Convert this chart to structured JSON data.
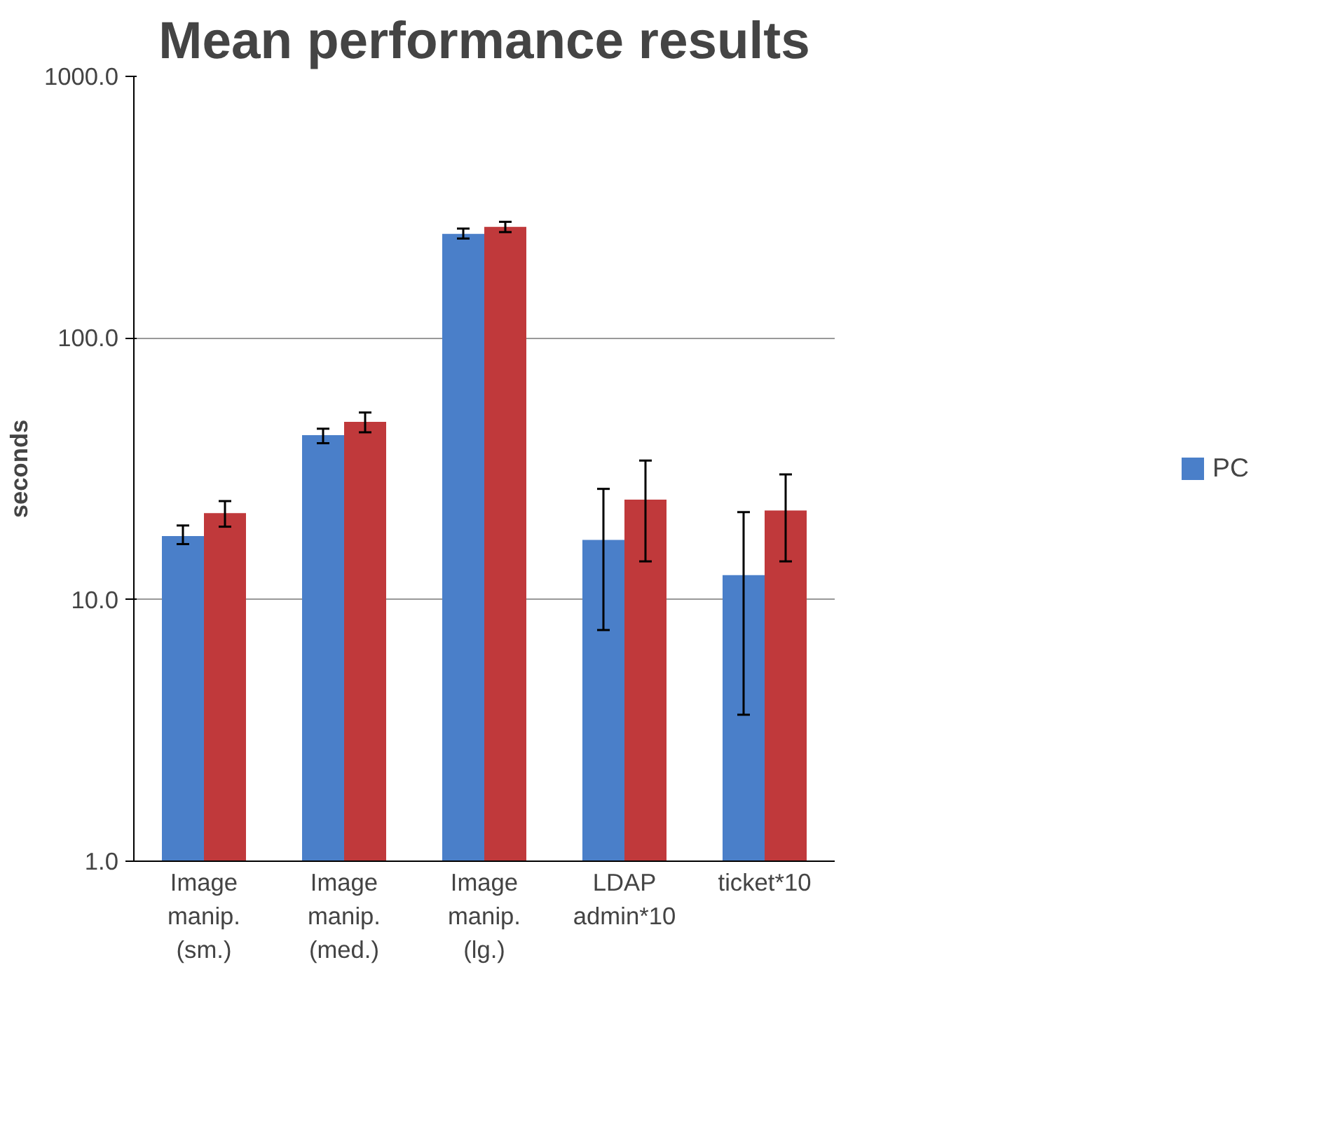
{
  "chart_data": {
    "type": "bar",
    "title": "Mean performance results",
    "ylabel": "seconds",
    "categories": [
      "Image manip. (sm.)",
      "Image manip. (med.)",
      "Image manip. (lg.)",
      "LDAP admin*10",
      "ticket*10"
    ],
    "series": [
      {
        "name": "PC",
        "color": "#4a7fc9",
        "values": [
          17.5,
          42.5,
          250,
          16.9,
          12.4
        ],
        "errors": [
          [
            16.3,
            19.2
          ],
          [
            39.6,
            45
          ],
          [
            240,
            262
          ],
          [
            7.65,
            26.5
          ],
          [
            3.63,
            21.6
          ]
        ]
      },
      {
        "color": "#c0393b",
        "values": [
          21.4,
          47.8,
          266,
          24.1,
          21.9
        ],
        "errors": [
          [
            19.0,
            23.8
          ],
          [
            43.6,
            51.9
          ],
          [
            254,
            278
          ],
          [
            14.0,
            34
          ],
          [
            14.0,
            30.1
          ]
        ]
      }
    ],
    "log": true,
    "ylim": [
      1,
      1000
    ],
    "yticks": [
      {
        "value": 1,
        "label": "1.0"
      },
      {
        "value": 10,
        "label": "10.0"
      },
      {
        "value": 100,
        "label": "100.0"
      },
      {
        "value": 1000,
        "label": "1000.0"
      }
    ],
    "grid": "y",
    "legend": "right"
  }
}
